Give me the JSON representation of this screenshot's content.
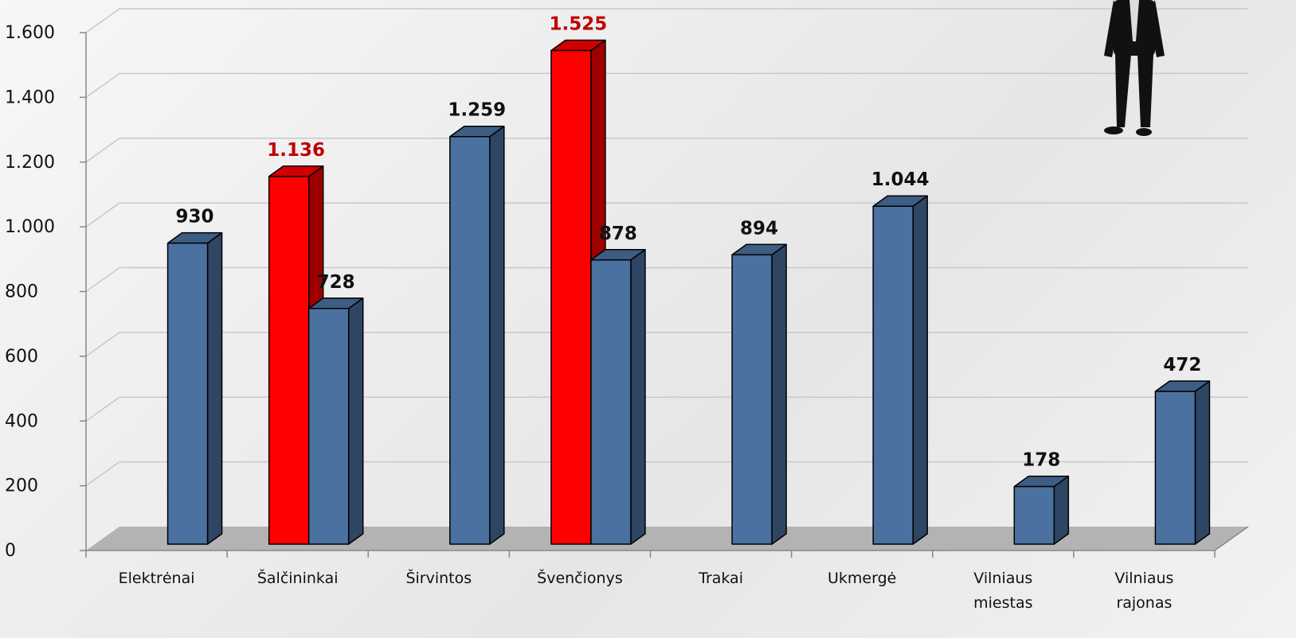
{
  "chart_data": {
    "type": "bar3d",
    "categories": [
      "Elektrėnai",
      "Šalčininkai",
      "Širvintos",
      "Švenčionys",
      "Trakai",
      "Ukmergė",
      "Vilniaus miestas",
      "Vilniaus rajonas"
    ],
    "series": [
      {
        "color": "#ff0000",
        "label_color": "#c00000",
        "values": [
          null,
          1136,
          null,
          1525,
          null,
          null,
          null,
          null
        ],
        "value_labels": [
          null,
          "1.136",
          null,
          "1.525",
          null,
          null,
          null,
          null
        ]
      },
      {
        "color": "#4a71a0",
        "label_color": "#111111",
        "values": [
          930,
          728,
          1259,
          878,
          894,
          1044,
          178,
          472
        ],
        "value_labels": [
          "930",
          "728",
          "1.259",
          "878",
          "894",
          "1.044",
          "178",
          "472"
        ]
      }
    ],
    "ylim": [
      0,
      1600
    ],
    "yticks": [
      0,
      200,
      400,
      600,
      800,
      {
        "value": 1000,
        "label": "1.000"
      },
      {
        "value": 1200,
        "label": "1.200"
      },
      {
        "value": 1400,
        "label": "1.400"
      },
      {
        "value": 1600,
        "label": "1.600"
      }
    ],
    "grid": true
  }
}
